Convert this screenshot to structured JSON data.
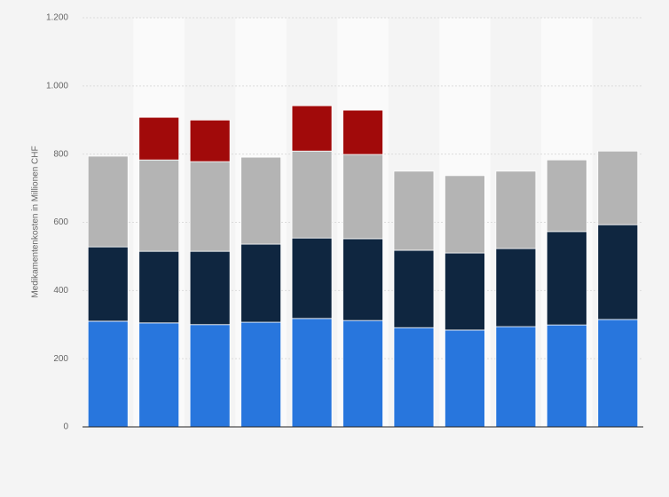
{
  "chart_data": {
    "type": "stacked-bar",
    "y_label": "Medikamentenkosten in Millionen CHF",
    "categories": [
      null,
      null,
      null,
      null,
      null,
      null,
      null,
      null,
      null,
      null,
      null
    ],
    "series": [
      {
        "color": "#2876dd",
        "values": [
          310,
          305,
          300,
          307,
          318,
          312,
          291,
          284,
          294,
          299,
          315
        ]
      },
      {
        "color": "#0f2640",
        "values": [
          218,
          210,
          215,
          229,
          236,
          240,
          227,
          226,
          229,
          274,
          278
        ]
      },
      {
        "color": "#b4b4b4",
        "values": [
          266,
          268,
          263,
          255,
          255,
          247,
          232,
          227,
          227,
          210,
          216
        ]
      },
      {
        "color": "#a10a0a",
        "values": [
          null,
          125,
          122,
          null,
          133,
          130,
          null,
          null,
          null,
          null,
          null
        ]
      }
    ],
    "ylim": [
      0,
      1200
    ],
    "yticks": [
      0,
      200,
      400,
      600,
      800,
      {
        "value": 1000,
        "label": "1.000"
      },
      {
        "value": 1200,
        "label": "1.200"
      }
    ],
    "grid": true
  }
}
